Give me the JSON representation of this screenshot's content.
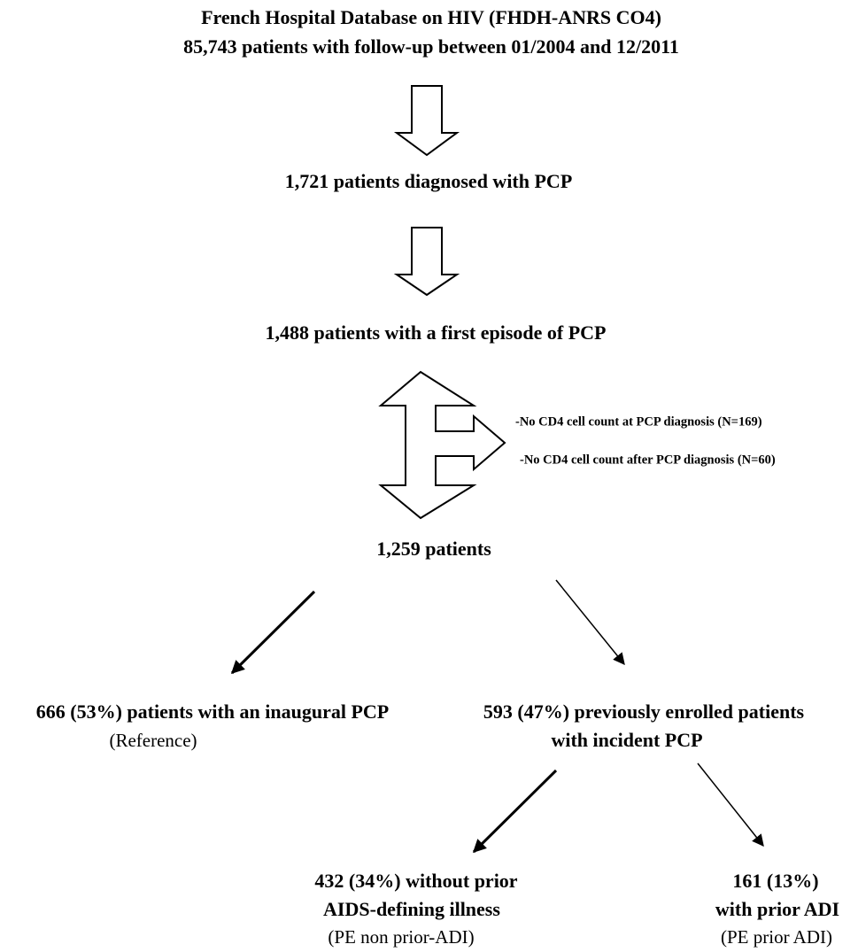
{
  "nodes": [
    {
      "lines": [
        "French Hospital Database on HIV (FHDH-ANRS CO4)",
        "85,743 patients with follow-up between 01/2004 and 12/2011"
      ]
    },
    {
      "lines": [
        "1,721 patients diagnosed with PCP"
      ]
    },
    {
      "lines": [
        "1,488 patients with a first episode of PCP"
      ]
    },
    {
      "lines": [
        "1,259 patients"
      ]
    },
    {
      "lines": [
        "666 (53%) patients with an inaugural PCP"
      ],
      "note": "(Reference)"
    },
    {
      "lines": [
        "593 (47%) previously enrolled patients",
        "with incident PCP"
      ]
    },
    {
      "lines": [
        "432 (34%) without prior",
        "AIDS-defining illness"
      ],
      "note": "(PE non prior-ADI)"
    },
    {
      "lines": [
        "161 (13%)",
        "with prior ADI"
      ],
      "note": "(PE prior ADI)"
    }
  ],
  "exclusions": [
    "-No CD4 cell count at PCP diagnosis (N=169)",
    "-No CD4 cell count after PCP diagnosis (N=60)"
  ]
}
